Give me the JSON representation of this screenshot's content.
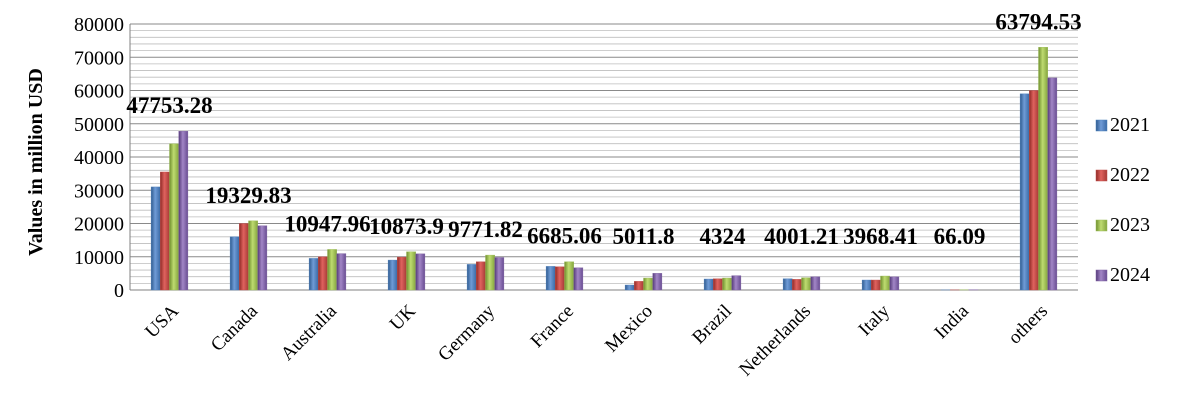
{
  "chart_data": {
    "type": "bar",
    "title": "",
    "xlabel": "",
    "ylabel": "Values in million USD",
    "ylim": [
      0,
      80000
    ],
    "yticks": [
      0,
      10000,
      20000,
      30000,
      40000,
      50000,
      60000,
      70000,
      80000
    ],
    "grid": true,
    "legend_position": "right",
    "categories": [
      "USA",
      "Canada",
      "Australia",
      "UK",
      "Germany",
      "France",
      "Mexico",
      "Brazil",
      "Netherlands",
      "Italy",
      "India",
      "others"
    ],
    "series": [
      {
        "name": "2021",
        "color": "#4F81BD",
        "values": [
          31000,
          16000,
          9500,
          9000,
          7700,
          7100,
          1500,
          3300,
          3400,
          3000,
          20,
          59000
        ]
      },
      {
        "name": "2022",
        "color": "#C0504D",
        "values": [
          35500,
          20000,
          10000,
          9900,
          8500,
          7000,
          2600,
          3400,
          3200,
          3000,
          30,
          60000
        ]
      },
      {
        "name": "2023",
        "color": "#9BBB59",
        "values": [
          44000,
          20800,
          12200,
          11500,
          10500,
          8500,
          3600,
          3600,
          3700,
          4200,
          50,
          73000
        ]
      },
      {
        "name": "2024",
        "color": "#8064A2",
        "values": [
          47753.28,
          19329.83,
          10947.96,
          10873.9,
          9771.82,
          6685.06,
          5011.8,
          4324,
          4001.21,
          3968.41,
          66.09,
          63794.53
        ]
      }
    ],
    "data_labels": [
      "47753.28",
      "19329.83",
      "10947.96",
      "10873.9",
      "9771.82",
      "6685.06",
      "5011.8",
      "4324",
      "4001.21",
      "3968.41",
      "66.09",
      "63794.53"
    ]
  }
}
